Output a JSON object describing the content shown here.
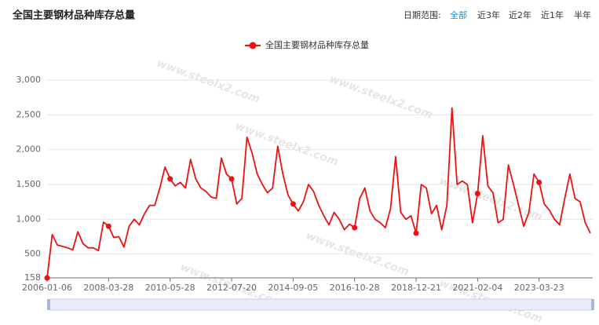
{
  "chart_data": {
    "type": "line",
    "title": "全国主要钢材品种库存总量",
    "controls": {
      "label": "日期范围:",
      "options": [
        "全部",
        "近3年",
        "近2年",
        "近1年",
        "半年"
      ],
      "selected": 0
    },
    "watermark": "www.steelx2.com",
    "categories": [
      "2006-01-06",
      null,
      null,
      null,
      null,
      null,
      null,
      null,
      null,
      null,
      null,
      null,
      "2008-03-28",
      null,
      null,
      null,
      null,
      null,
      null,
      null,
      null,
      null,
      null,
      null,
      "2010-05-28",
      null,
      null,
      null,
      null,
      null,
      null,
      null,
      null,
      null,
      null,
      null,
      "2012-07-20",
      null,
      null,
      null,
      null,
      null,
      null,
      null,
      null,
      null,
      null,
      null,
      "2014-09-05",
      null,
      null,
      null,
      null,
      null,
      null,
      null,
      null,
      null,
      null,
      null,
      "2016-10-28",
      null,
      null,
      null,
      null,
      null,
      null,
      null,
      null,
      null,
      null,
      null,
      "2018-12-21",
      null,
      null,
      null,
      null,
      null,
      null,
      null,
      null,
      null,
      null,
      null,
      "2021-02-04",
      null,
      null,
      null,
      null,
      null,
      null,
      null,
      null,
      null,
      null,
      null,
      "2023-03-23",
      null,
      null,
      null,
      null,
      null,
      null,
      null,
      null,
      null,
      null
    ],
    "series": [
      {
        "name": "全国主要钢材品种库存总量",
        "color": "#ee1111",
        "values": [
          158,
          780,
          630,
          610,
          590,
          560,
          820,
          650,
          590,
          590,
          550,
          960,
          900,
          740,
          750,
          600,
          900,
          1000,
          920,
          1080,
          1200,
          1200,
          1450,
          1750,
          1580,
          1480,
          1530,
          1450,
          1860,
          1580,
          1450,
          1400,
          1320,
          1300,
          1880,
          1650,
          1580,
          1220,
          1300,
          2180,
          1950,
          1650,
          1500,
          1380,
          1450,
          2050,
          1650,
          1350,
          1220,
          1120,
          1250,
          1500,
          1400,
          1200,
          1050,
          920,
          1100,
          1000,
          850,
          930,
          880,
          1300,
          1450,
          1120,
          1000,
          950,
          880,
          1150,
          1900,
          1100,
          1000,
          1050,
          800,
          1500,
          1450,
          1080,
          1200,
          850,
          1200,
          2600,
          1500,
          1550,
          1500,
          950,
          1370,
          2200,
          1480,
          1380,
          950,
          1000,
          1780,
          1500,
          1200,
          900,
          1100,
          1650,
          1530,
          1220,
          1130,
          1000,
          920,
          1300,
          1650,
          1300,
          1250,
          950,
          800
        ]
      }
    ],
    "ylim": [
      158,
      3000
    ],
    "yticks": [
      158,
      500,
      {
        "value": 1000,
        "label": "1,000"
      },
      {
        "value": 1500,
        "label": "1,500"
      },
      {
        "value": 2000,
        "label": "2,000"
      },
      {
        "value": 2500,
        "label": "2,500"
      },
      {
        "value": 3000,
        "label": "3,000"
      }
    ],
    "grid": true
  }
}
